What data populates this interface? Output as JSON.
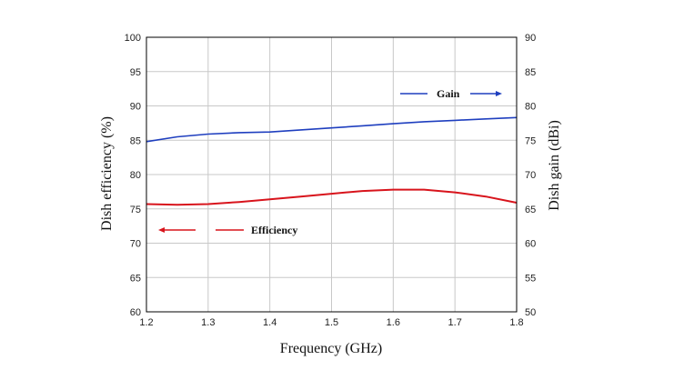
{
  "chart_data": {
    "type": "line",
    "xlabel": "Frequency (GHz)",
    "ylabel_left": "Dish efficiency (%)",
    "ylabel_right": "Dish gain (dBi)",
    "xlim": [
      1.2,
      1.8
    ],
    "ylim_left": [
      60,
      100
    ],
    "ylim_right": [
      50,
      90
    ],
    "x_ticks": [
      "1.2",
      "1.3",
      "1.4",
      "1.5",
      "1.6",
      "1.7",
      "1.8"
    ],
    "y_left_ticks": [
      "60",
      "65",
      "70",
      "75",
      "80",
      "85",
      "90",
      "95",
      "100"
    ],
    "y_right_ticks": [
      "50",
      "55",
      "60",
      "65",
      "70",
      "75",
      "80",
      "85",
      "90"
    ],
    "grid": true,
    "series": [
      {
        "name": "Gain",
        "axis": "right",
        "color": "#1f3fbf",
        "x": [
          1.2,
          1.25,
          1.3,
          1.35,
          1.4,
          1.45,
          1.5,
          1.55,
          1.6,
          1.65,
          1.7,
          1.75,
          1.8
        ],
        "y": [
          74.8,
          75.5,
          75.9,
          76.1,
          76.2,
          76.5,
          76.8,
          77.1,
          77.4,
          77.7,
          77.9,
          78.1,
          78.3
        ]
      },
      {
        "name": "Efficiency",
        "axis": "left",
        "color": "#d8141c",
        "x": [
          1.2,
          1.25,
          1.3,
          1.35,
          1.4,
          1.45,
          1.5,
          1.55,
          1.6,
          1.65,
          1.7,
          1.75,
          1.8
        ],
        "y": [
          75.7,
          75.6,
          75.7,
          76.0,
          76.4,
          76.8,
          77.2,
          77.6,
          77.8,
          77.8,
          77.4,
          76.8,
          75.9
        ]
      }
    ],
    "legend": {
      "gain_label": "Gain",
      "efficiency_label": "Efficiency",
      "gain_arrow": "right",
      "efficiency_arrow": "left"
    }
  }
}
